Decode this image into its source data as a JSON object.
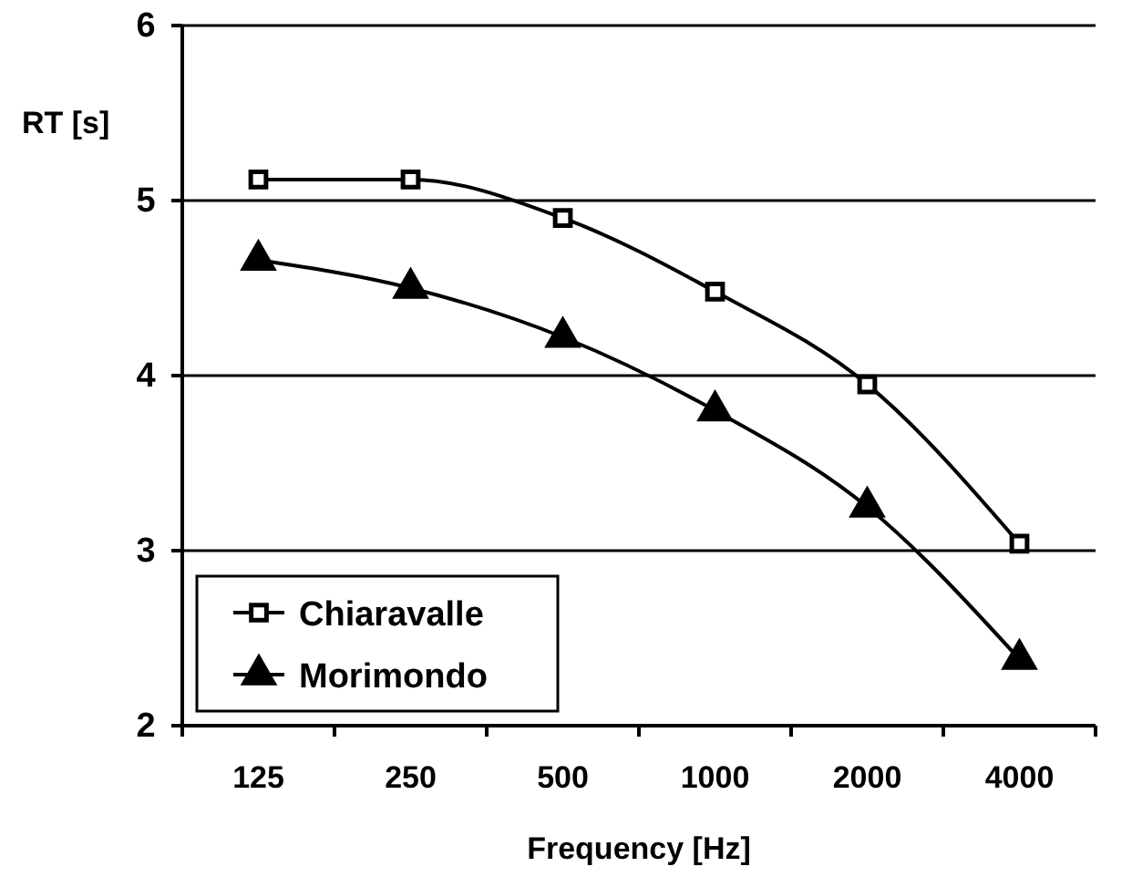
{
  "chart_data": {
    "type": "line",
    "xlabel": "Frequency [Hz]",
    "ylabel": "RT [s]",
    "categories": [
      "125",
      "250",
      "500",
      "1000",
      "2000",
      "4000"
    ],
    "series": [
      {
        "name": "Chiaravalle",
        "color": "#000000",
        "marker": "square",
        "values": [
          5.12,
          5.12,
          4.9,
          4.48,
          3.95,
          3.04
        ]
      },
      {
        "name": "Morimondo",
        "color": "#000000",
        "marker": "triangle",
        "values": [
          4.66,
          4.5,
          4.22,
          3.8,
          3.25,
          2.38
        ]
      }
    ],
    "ylim": [
      2,
      6
    ],
    "yticks": [
      2,
      3,
      4,
      5,
      6
    ],
    "grid": "y",
    "legend": "bottom left",
    "line_style": "solid"
  }
}
